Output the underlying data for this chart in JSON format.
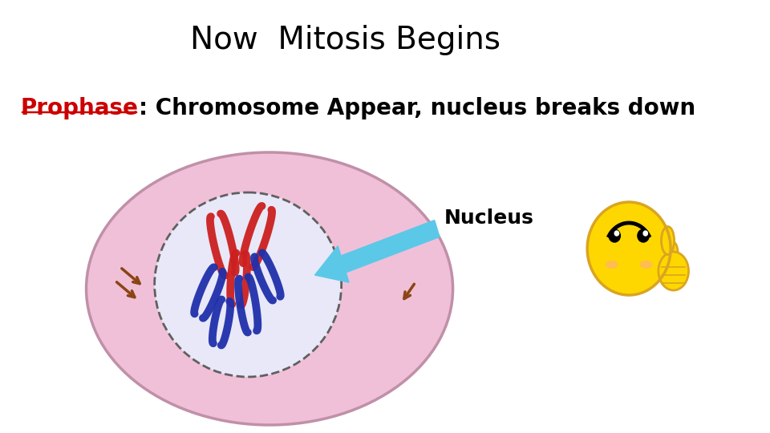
{
  "title": "Now  Mitosis Begins",
  "title_fontsize": 28,
  "title_color": "#000000",
  "subtitle_red": "Prophase",
  "subtitle_black": ": Chromosome Appear, nucleus breaks down",
  "subtitle_fontsize": 20,
  "nucleus_label": "Nucleus",
  "nucleus_label_fontsize": 18,
  "bg_color": "#ffffff",
  "cell_color": "#f0c0d8",
  "cell_outline": "#c090a8",
  "nucleus_color": "#e8e8f8",
  "nucleus_outline": "#606060",
  "arrow_color": "#5bc8e8",
  "chrom_red": "#cc2020",
  "chrom_blue": "#2030aa",
  "centri_color": "#8B4513",
  "emoji_face": "#FFD700",
  "emoji_outline": "#DAA520"
}
